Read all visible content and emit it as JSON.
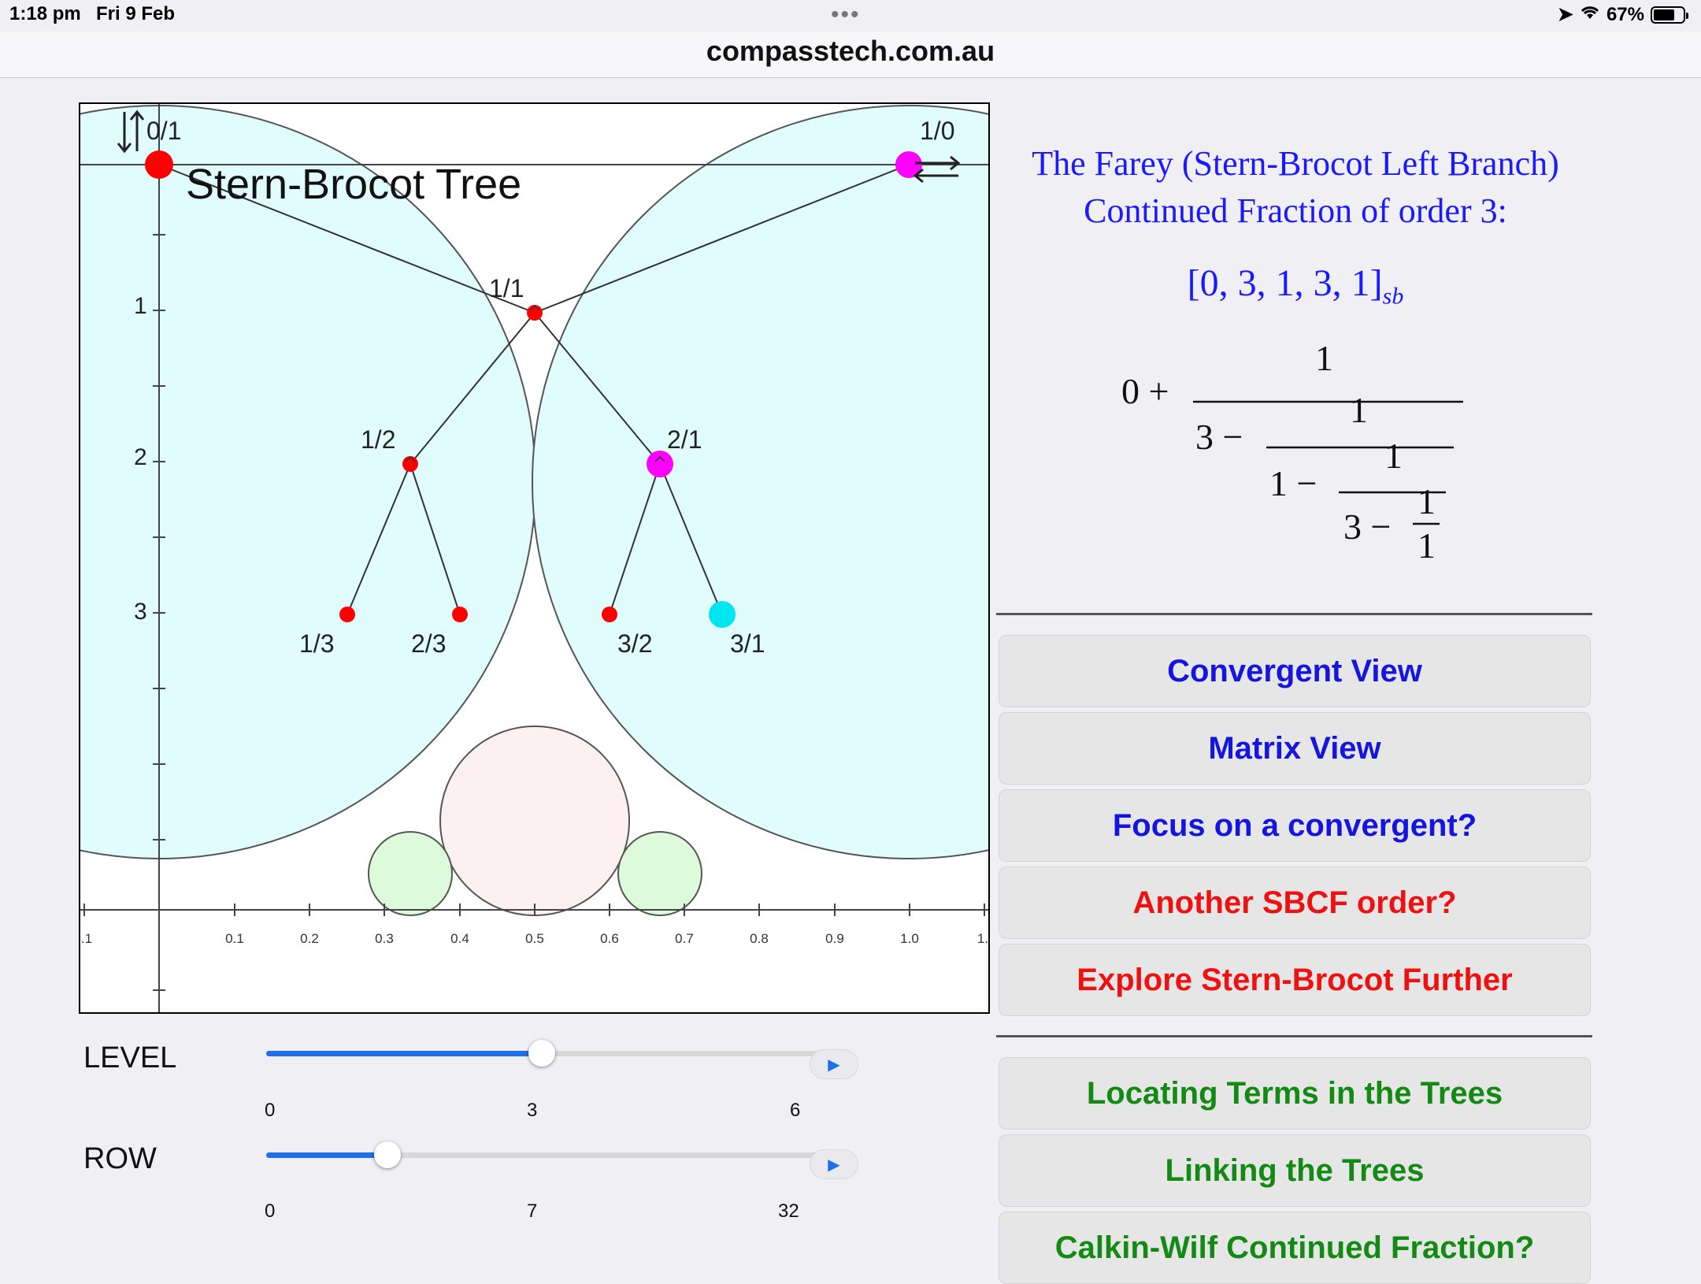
{
  "status": {
    "time": "1:18 pm",
    "date": "Fri 9 Feb",
    "battery": "67%"
  },
  "browser": {
    "url": "compasstech.com.au"
  },
  "diagram": {
    "title": "Stern-Brocot Tree",
    "top_left_label": "0/1",
    "top_right_label": "1/0",
    "nodes": [
      "1/1",
      "1/2",
      "2/1",
      "1/3",
      "2/3",
      "3/2",
      "3/1"
    ],
    "y_ticks": [
      "1",
      "2",
      "3"
    ],
    "x_ticks": [
      ".1",
      "0.1",
      "0.2",
      "0.3",
      "0.4",
      "0.5",
      "0.6",
      "0.7",
      "0.8",
      "0.9",
      "1.0",
      "1."
    ],
    "colors": {
      "circle": "#e0fcfc",
      "center_circle": "#fdf0f0",
      "small_circle": "#ddfadb",
      "node": "#ff0000",
      "highlight": "#ff00ff",
      "current": "#00e5f0"
    }
  },
  "panel": {
    "title_line1": "The Farey (Stern-Brocot Left Branch)",
    "title_line2": "Continued Fraction of order 3:",
    "cf_list": "[0, 3, 1, 3, 1]",
    "cf_sub": "sb",
    "math": {
      "a0": "0 +",
      "one": "1",
      "b1": "3 −",
      "b2": "1 −",
      "b3": "3 −"
    }
  },
  "buttons": {
    "convergent_view": "Convergent View",
    "matrix_view": "Matrix View",
    "focus": "Focus on a convergent?",
    "another_order": "Another SBCF order?",
    "explore": "Explore Stern-Brocot Further",
    "locating": "Locating Terms in the Trees",
    "linking": "Linking the Trees",
    "calkin": "Calkin-Wilf Continued Fraction?"
  },
  "sliders": {
    "level": {
      "label": "LEVEL",
      "min": "0",
      "mid": "3",
      "max": "6",
      "value_fraction": 0.5
    },
    "row": {
      "label": "ROW",
      "min": "0",
      "mid": "7",
      "max": "32",
      "value_fraction": 0.22
    }
  }
}
